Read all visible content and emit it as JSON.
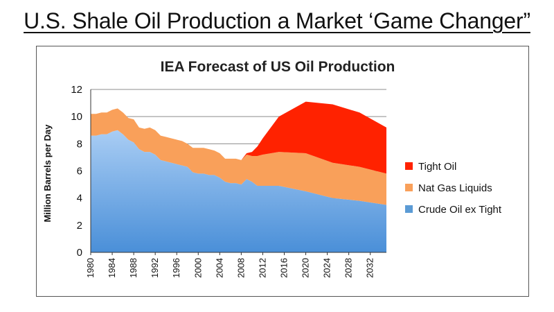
{
  "slide": {
    "title": "U.S. Shale Oil Production a Market ‘Game Changer”"
  },
  "chart_data": {
    "type": "area",
    "stacked": true,
    "title": "IEA Forecast of US Oil Production",
    "xlabel": "",
    "ylabel": "Million Barrels per Day",
    "ylim": [
      0,
      12
    ],
    "yticks": [
      0,
      2,
      4,
      6,
      8,
      10,
      12
    ],
    "xlim": [
      1980,
      2035
    ],
    "xticks": [
      1980,
      1984,
      1988,
      1992,
      1996,
      2000,
      2004,
      2008,
      2012,
      2016,
      2020,
      2024,
      2028,
      2032
    ],
    "grid": "horizontal",
    "legend_position": "right",
    "x": [
      1980,
      1981,
      1982,
      1983,
      1984,
      1985,
      1986,
      1987,
      1988,
      1989,
      1990,
      1991,
      1992,
      1993,
      1994,
      1995,
      1996,
      1997,
      1998,
      1999,
      2000,
      2001,
      2002,
      2003,
      2004,
      2005,
      2006,
      2007,
      2008,
      2009,
      2010,
      2011,
      2012,
      2015,
      2020,
      2025,
      2030,
      2035
    ],
    "series": [
      {
        "name": "Crude Oil ex Tight",
        "color": "#5b9bd5",
        "values": [
          8.6,
          8.6,
          8.7,
          8.7,
          8.9,
          9.0,
          8.7,
          8.3,
          8.1,
          7.6,
          7.4,
          7.4,
          7.2,
          6.8,
          6.7,
          6.6,
          6.5,
          6.4,
          6.3,
          5.9,
          5.8,
          5.8,
          5.7,
          5.7,
          5.5,
          5.2,
          5.1,
          5.1,
          5.0,
          5.4,
          5.2,
          4.9,
          4.9,
          4.9,
          4.5,
          4.0,
          3.8,
          3.5
        ]
      },
      {
        "name": "Nat Gas Liquids",
        "color": "#f9a05a",
        "values": [
          1.6,
          1.6,
          1.6,
          1.6,
          1.6,
          1.6,
          1.6,
          1.6,
          1.7,
          1.6,
          1.7,
          1.8,
          1.8,
          1.8,
          1.8,
          1.8,
          1.8,
          1.8,
          1.7,
          1.8,
          1.9,
          1.9,
          1.9,
          1.8,
          1.8,
          1.7,
          1.8,
          1.8,
          1.8,
          1.8,
          1.9,
          2.2,
          2.3,
          2.5,
          2.8,
          2.6,
          2.5,
          2.3
        ]
      },
      {
        "name": "Tight Oil",
        "color": "#ff2200",
        "values": [
          0,
          0,
          0,
          0,
          0,
          0,
          0,
          0,
          0,
          0,
          0,
          0,
          0,
          0,
          0,
          0,
          0,
          0,
          0,
          0,
          0,
          0,
          0,
          0,
          0,
          0,
          0,
          0,
          0,
          0.1,
          0.3,
          0.7,
          1.2,
          2.6,
          3.8,
          4.3,
          4.0,
          3.4
        ]
      }
    ],
    "legend_order": [
      "Tight Oil",
      "Nat Gas Liquids",
      "Crude Oil ex Tight"
    ]
  }
}
